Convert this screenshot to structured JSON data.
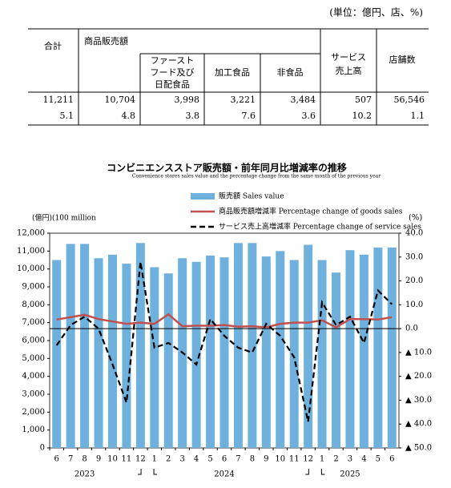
{
  "unit_note": "(単位：億円、店、%)",
  "table": {
    "headers": {
      "total": "合計",
      "goods": "商品販売額",
      "fastfood": [
        "ファースト",
        "フード及び",
        "日配食品"
      ],
      "processed": "加工食品",
      "nonfood": "非食品",
      "service": [
        "サービス",
        "売上高"
      ],
      "stores": "店舗数"
    },
    "rows": [
      [
        "11,211",
        "10,704",
        "3,998",
        "3,221",
        "3,484",
        "507",
        "56,546"
      ],
      [
        "5.1",
        "4.8",
        "3.8",
        "7.6",
        "3.6",
        "10.2",
        "1.1"
      ]
    ]
  },
  "chart_data": {
    "type": "bar",
    "title": "コンビニエンスストア販売額・前年同月比増減率の推移",
    "subtitle": "Convenience stores sales value and the percentage change from the same month of the previous year",
    "y_label": "(億円)(100 million",
    "y2_label": "(%)",
    "categories": [
      "6",
      "7",
      "8",
      "9",
      "10",
      "11",
      "12",
      "1",
      "2",
      "3",
      "4",
      "5",
      "6",
      "7",
      "8",
      "9",
      "10",
      "11",
      "12",
      "1",
      "2",
      "3",
      "4",
      "5",
      "6"
    ],
    "years": [
      "2023",
      "2024",
      "2025"
    ],
    "series": [
      {
        "name": "販売額 Sales value",
        "color": "#6fb1dc",
        "values": [
          10500,
          11400,
          11400,
          10600,
          10800,
          10300,
          11450,
          10100,
          9750,
          10600,
          10400,
          10750,
          10650,
          11450,
          11450,
          10700,
          11000,
          10500,
          11350,
          10500,
          9800,
          11050,
          10800,
          11200,
          11200
        ]
      },
      {
        "name": "商品販売額増減率 Percentage change of goods sales",
        "color": "#c0504d",
        "axis": "y2",
        "type": "line",
        "values": [
          3.8,
          4.8,
          5.8,
          4,
          3,
          2,
          2.5,
          2,
          6,
          1,
          1.2,
          1.2,
          1.5,
          0.8,
          1,
          0.5,
          2,
          2.5,
          2.5,
          3.5,
          0.5,
          4,
          4,
          3.8,
          4.8
        ]
      },
      {
        "name": "サービス売上高増減率 Percentage change of service sales",
        "color": "#000000",
        "axis": "y2",
        "type": "line",
        "dash": true,
        "values": [
          -7,
          1.5,
          5,
          0,
          -15,
          -31,
          28,
          -8,
          -6,
          -10,
          -15,
          4,
          -3,
          -8,
          -10,
          2,
          -3,
          -12,
          -39,
          11,
          1.5,
          5,
          -6,
          16,
          10.2
        ]
      }
    ],
    "ylim": [
      0,
      12000
    ],
    "yticks": [
      {
        "value": 0,
        "label": "0"
      },
      {
        "value": 1000,
        "label": "1,000"
      },
      {
        "value": 2000,
        "label": "2,000"
      },
      {
        "value": 3000,
        "label": "3,000"
      },
      {
        "value": 4000,
        "label": "4,000"
      },
      {
        "value": 5000,
        "label": "5,000"
      },
      {
        "value": 6000,
        "label": "6,000"
      },
      {
        "value": 7000,
        "label": "7,000"
      },
      {
        "value": 8000,
        "label": "8,000"
      },
      {
        "value": 9000,
        "label": "9,000"
      },
      {
        "value": 10000,
        "label": "10,000"
      },
      {
        "value": 11000,
        "label": "11,000"
      },
      {
        "value": 12000,
        "label": "12,000"
      }
    ],
    "y2lim": [
      -50,
      40
    ],
    "y2ticks": [
      {
        "value": 40,
        "label": "40.0"
      },
      {
        "value": 30,
        "label": "30.0"
      },
      {
        "value": 20,
        "label": "20.0"
      },
      {
        "value": 10,
        "label": "10.0"
      },
      {
        "value": 0,
        "label": "0.0"
      },
      {
        "value": -10,
        "label": "▲ 10.0"
      },
      {
        "value": -20,
        "label": "▲ 20.0"
      },
      {
        "value": -30,
        "label": "▲ 30.0"
      },
      {
        "value": -40,
        "label": "▲ 40.0"
      },
      {
        "value": -50,
        "label": "▲ 50.0"
      }
    ]
  }
}
